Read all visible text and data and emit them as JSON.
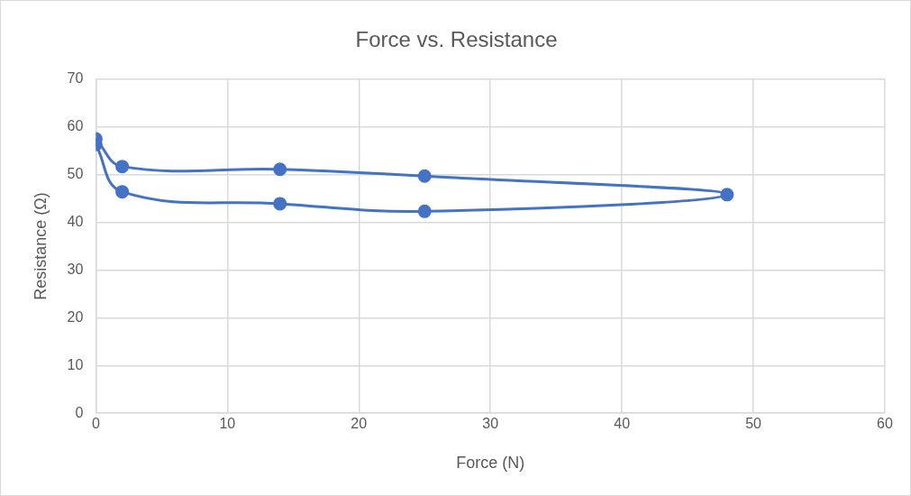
{
  "chart_data": {
    "type": "scatter",
    "title": "Force vs. Resistance",
    "xlabel": "Force (N)",
    "ylabel": "Resistance (Ω)",
    "series": [
      {
        "type": "line",
        "color": "#4472c4",
        "x": [
          0,
          2,
          14,
          25,
          48,
          25,
          14,
          2,
          0
        ],
        "values": [
          57.5,
          51.7,
          51.1,
          49.7,
          45.8,
          42.3,
          43.9,
          46.4,
          56.3
        ]
      }
    ],
    "xlim": [
      0,
      60
    ],
    "xticks": [
      0,
      10,
      20,
      30,
      40,
      50,
      60
    ],
    "ylim": [
      0,
      70
    ],
    "yticks": [
      0,
      10,
      20,
      30,
      40,
      50,
      60,
      70
    ],
    "grid": true,
    "legend": false,
    "marker": "circle",
    "line_style": "solid"
  }
}
